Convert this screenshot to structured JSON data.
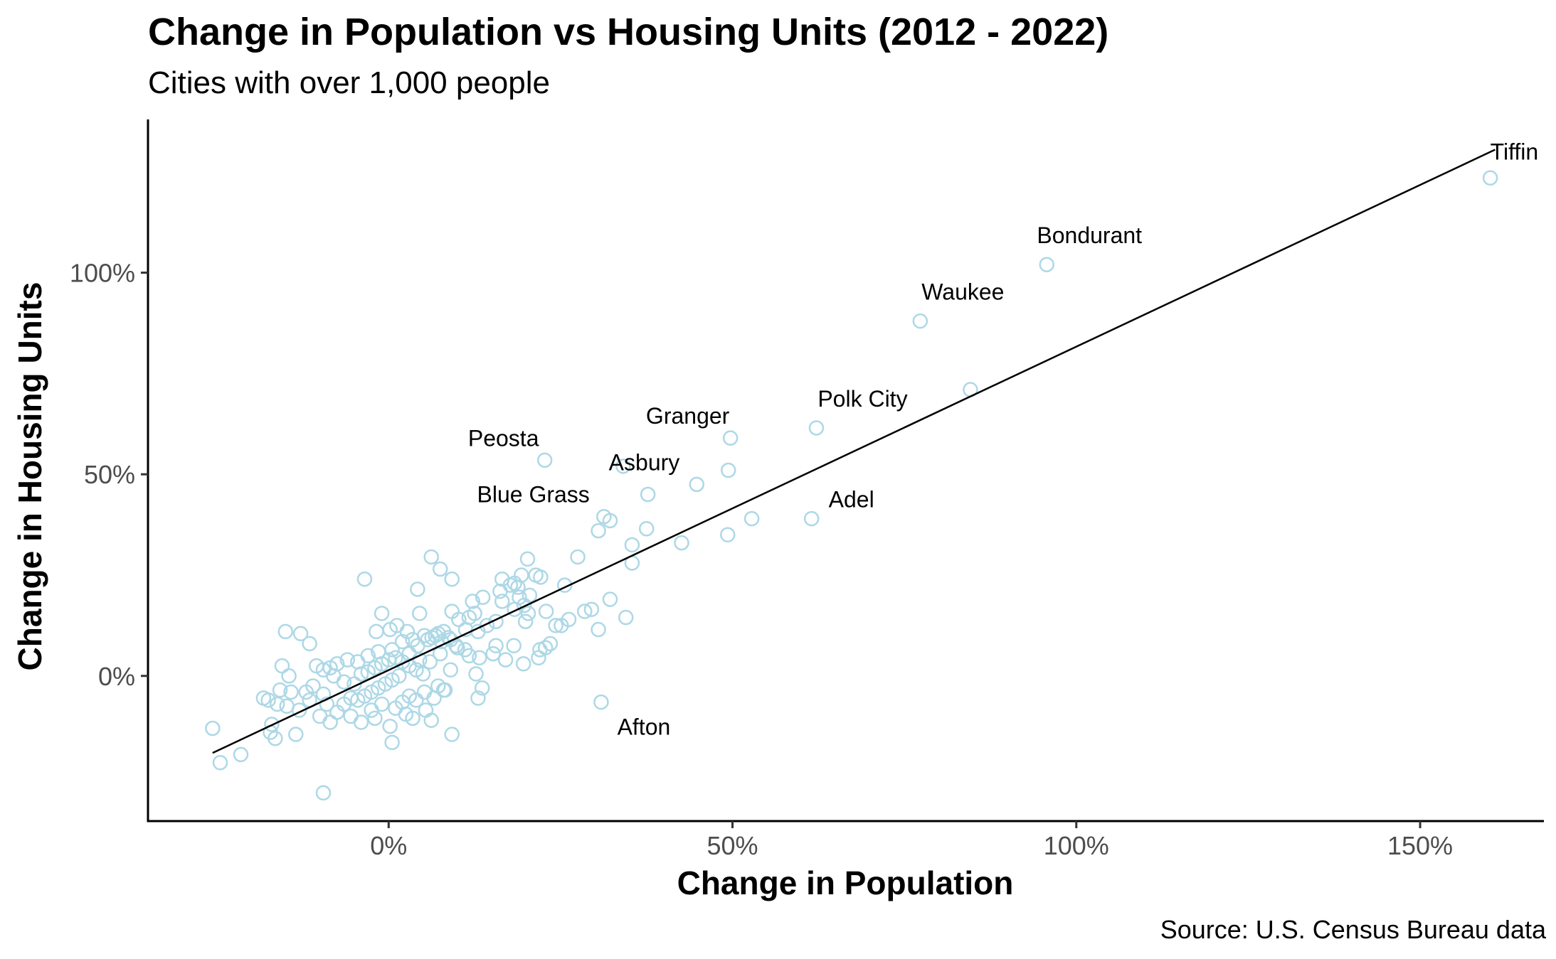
{
  "chart_data": {
    "type": "scatter",
    "title": "Change in Population vs Housing Units (2012 - 2022)",
    "subtitle": "Cities with over 1,000 people",
    "caption": "Source: U.S. Census Bureau data",
    "xlabel": "Change in Population",
    "ylabel": "Change in Housing Units",
    "xlim": [
      -35,
      168
    ],
    "ylim": [
      -36,
      138
    ],
    "x_ticks": [
      {
        "value": 0,
        "label": "0%"
      },
      {
        "value": 50,
        "label": "50%"
      },
      {
        "value": 100,
        "label": "100%"
      },
      {
        "value": 150,
        "label": "150%"
      }
    ],
    "y_ticks": [
      {
        "value": 0,
        "label": "0%"
      },
      {
        "value": 50,
        "label": "50%"
      },
      {
        "value": 100,
        "label": "100%"
      }
    ],
    "grid": false,
    "point_color": "#add8e6",
    "trend_color": "#000000",
    "trendline": {
      "x": [
        -25.6,
        160.9
      ],
      "y": [
        -19.1,
        130.5
      ]
    },
    "labeled_points": [
      {
        "name": "Tiffin",
        "x": 160.2,
        "y": 123.5
      },
      {
        "name": "Bondurant",
        "x": 95.7,
        "y": 102.0
      },
      {
        "name": "Waukee",
        "x": 77.3,
        "y": 88.0
      },
      {
        "name": "Polk City",
        "x": 62.2,
        "y": 61.5
      },
      {
        "name": "Granger",
        "x": 49.7,
        "y": 59.0
      },
      {
        "name": "Peosta",
        "x": 22.7,
        "y": 53.5
      },
      {
        "name": "Asbury",
        "x": 44.8,
        "y": 47.5
      },
      {
        "name": "Blue Grass",
        "x": 31.3,
        "y": 39.5
      },
      {
        "name": "Adel",
        "x": 61.5,
        "y": 39.0
      },
      {
        "name": "Afton",
        "x": 30.9,
        "y": -6.5
      }
    ],
    "points": [
      [
        84.6,
        71.0
      ],
      [
        49.4,
        51.0
      ],
      [
        52.8,
        39.0
      ],
      [
        49.3,
        35.0
      ],
      [
        42.6,
        33.0
      ],
      [
        34.1,
        52.0
      ],
      [
        37.7,
        45.0
      ],
      [
        32.2,
        38.5
      ],
      [
        37.5,
        36.5
      ],
      [
        30.5,
        36.0
      ],
      [
        35.4,
        32.5
      ],
      [
        27.5,
        29.5
      ],
      [
        35.4,
        28.0
      ],
      [
        32.2,
        19.0
      ],
      [
        34.5,
        14.5
      ],
      [
        29.5,
        16.5
      ],
      [
        28.5,
        16.0
      ],
      [
        30.5,
        11.5
      ],
      [
        26.2,
        14.0
      ],
      [
        25.1,
        12.5
      ],
      [
        24.3,
        12.5
      ],
      [
        23.5,
        8.0
      ],
      [
        22.8,
        7.0
      ],
      [
        22.0,
        6.5
      ],
      [
        21.8,
        4.5
      ],
      [
        19.6,
        3.0
      ],
      [
        18.2,
        7.5
      ],
      [
        17.0,
        4.0
      ],
      [
        25.6,
        22.5
      ],
      [
        22.1,
        24.5
      ],
      [
        21.4,
        25.0
      ],
      [
        20.2,
        29.0
      ],
      [
        19.3,
        25.0
      ],
      [
        18.3,
        23.0
      ],
      [
        17.7,
        22.5
      ],
      [
        16.5,
        24.0
      ],
      [
        16.2,
        21.0
      ],
      [
        16.5,
        18.5
      ],
      [
        18.8,
        22.0
      ],
      [
        19.0,
        19.5
      ],
      [
        20.5,
        20.0
      ],
      [
        19.7,
        17.5
      ],
      [
        20.3,
        15.5
      ],
      [
        19.9,
        13.5
      ],
      [
        22.9,
        16.0
      ],
      [
        18.3,
        16.5
      ],
      [
        15.6,
        13.5
      ],
      [
        13.7,
        19.5
      ],
      [
        12.2,
        18.5
      ],
      [
        12.5,
        15.5
      ],
      [
        11.7,
        14.5
      ],
      [
        14.3,
        12.5
      ],
      [
        13.0,
        11.0
      ],
      [
        11.2,
        11.5
      ],
      [
        10.2,
        14.0
      ],
      [
        9.2,
        16.0
      ],
      [
        9.2,
        24.0
      ],
      [
        7.5,
        26.5
      ],
      [
        6.2,
        29.5
      ],
      [
        4.2,
        21.5
      ],
      [
        4.5,
        15.5
      ],
      [
        5.2,
        10.0
      ],
      [
        6.3,
        9.5
      ],
      [
        7.2,
        10.5
      ],
      [
        8.0,
        11.0
      ],
      [
        8.7,
        9.5
      ],
      [
        9.8,
        7.5
      ],
      [
        11.1,
        6.5
      ],
      [
        11.7,
        5.0
      ],
      [
        13.2,
        4.5
      ],
      [
        15.2,
        5.5
      ],
      [
        15.6,
        7.5
      ],
      [
        12.7,
        0.5
      ],
      [
        13.6,
        -3.0
      ],
      [
        13.0,
        -5.5
      ],
      [
        8.2,
        -3.5
      ],
      [
        7.2,
        -2.5
      ],
      [
        6.6,
        -5.5
      ],
      [
        5.2,
        -4.0
      ],
      [
        6.2,
        -11.0
      ],
      [
        5.4,
        -8.5
      ],
      [
        9.2,
        -14.5
      ],
      [
        8.0,
        -3.5
      ],
      [
        9.0,
        1.5
      ],
      [
        -3.5,
        24.0
      ],
      [
        -1.0,
        15.5
      ],
      [
        -1.8,
        11.0
      ],
      [
        0.2,
        11.5
      ],
      [
        1.2,
        12.5
      ],
      [
        2.7,
        11.0
      ],
      [
        3.5,
        9.0
      ],
      [
        2.0,
        8.5
      ],
      [
        4.2,
        7.5
      ],
      [
        5.7,
        9.0
      ],
      [
        6.8,
        10.0
      ],
      [
        7.7,
        8.5
      ],
      [
        9.0,
        9.0
      ],
      [
        10.0,
        7.0
      ],
      [
        3.0,
        5.5
      ],
      [
        4.5,
        4.0
      ],
      [
        6.0,
        3.5
      ],
      [
        7.5,
        5.5
      ],
      [
        0.5,
        6.5
      ],
      [
        -1.5,
        6.0
      ],
      [
        -3.0,
        5.0
      ],
      [
        -4.5,
        3.5
      ],
      [
        -6.0,
        4.0
      ],
      [
        -7.5,
        3.0
      ],
      [
        -8.5,
        2.0
      ],
      [
        -9.5,
        1.5
      ],
      [
        -10.5,
        2.5
      ],
      [
        -8.0,
        0.0
      ],
      [
        -6.5,
        -1.5
      ],
      [
        -5.0,
        -2.0
      ],
      [
        -4.0,
        0.5
      ],
      [
        -3.0,
        1.0
      ],
      [
        -2.0,
        2.0
      ],
      [
        -1.0,
        3.0
      ],
      [
        0.0,
        4.0
      ],
      [
        1.0,
        4.5
      ],
      [
        2.0,
        3.5
      ],
      [
        3.0,
        2.5
      ],
      [
        4.0,
        1.5
      ],
      [
        5.0,
        0.5
      ],
      [
        1.5,
        0.0
      ],
      [
        0.5,
        -1.0
      ],
      [
        -0.5,
        -2.0
      ],
      [
        -1.5,
        -3.0
      ],
      [
        -2.5,
        -4.0
      ],
      [
        -3.5,
        -5.0
      ],
      [
        -4.5,
        -6.0
      ],
      [
        -5.5,
        -5.5
      ],
      [
        -6.5,
        -7.0
      ],
      [
        -7.5,
        -9.0
      ],
      [
        -5.5,
        -10.0
      ],
      [
        -4.0,
        -11.5
      ],
      [
        -2.0,
        -10.5
      ],
      [
        0.2,
        -12.5
      ],
      [
        0.5,
        -16.5
      ],
      [
        2.5,
        -9.5
      ],
      [
        3.5,
        -10.5
      ],
      [
        1.0,
        -8.0
      ],
      [
        -1.0,
        -7.0
      ],
      [
        -2.5,
        -8.5
      ],
      [
        2.0,
        -6.5
      ],
      [
        3.0,
        -5.0
      ],
      [
        4.0,
        -6.0
      ],
      [
        -11.5,
        8.0
      ],
      [
        -12.8,
        10.5
      ],
      [
        -15.0,
        11.0
      ],
      [
        -15.5,
        2.5
      ],
      [
        -14.5,
        0.0
      ],
      [
        -14.2,
        -4.0
      ],
      [
        -15.8,
        -3.5
      ],
      [
        -17.5,
        -6.0
      ],
      [
        -18.2,
        -5.5
      ],
      [
        -16.2,
        -7.0
      ],
      [
        -14.8,
        -7.5
      ],
      [
        -13.0,
        -8.5
      ],
      [
        -11.5,
        -6.0
      ],
      [
        -12.0,
        -4.0
      ],
      [
        -11.0,
        -2.5
      ],
      [
        -9.5,
        -4.5
      ],
      [
        -9.0,
        -7.0
      ],
      [
        -10.0,
        -10.0
      ],
      [
        -8.5,
        -11.5
      ],
      [
        -13.5,
        -14.5
      ],
      [
        -16.5,
        -15.5
      ],
      [
        -17.2,
        -14.0
      ],
      [
        -17.0,
        -12.0
      ],
      [
        -25.6,
        -13.0
      ],
      [
        -24.5,
        -21.5
      ],
      [
        -21.5,
        -19.5
      ],
      [
        -9.5,
        -29.0
      ]
    ]
  }
}
